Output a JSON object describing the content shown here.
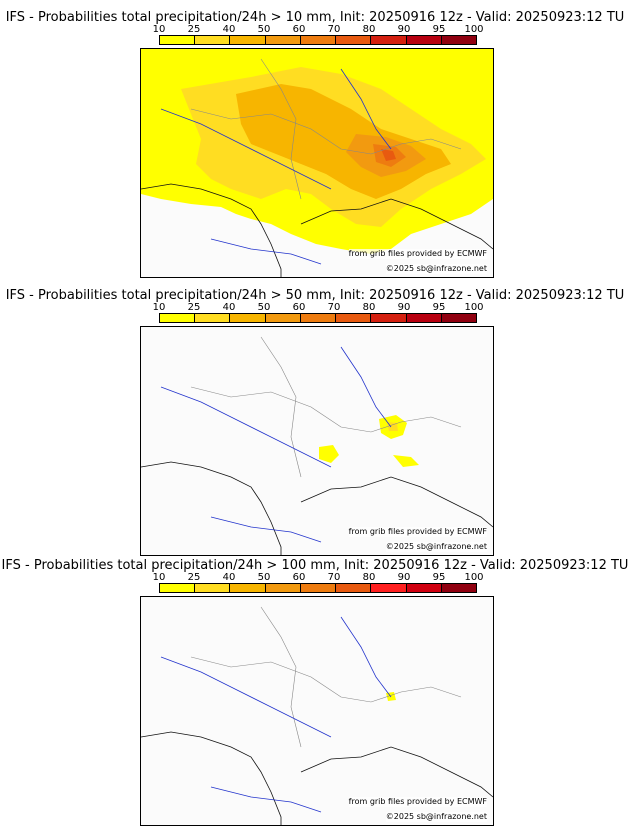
{
  "panels": [
    {
      "title": "IFS - Probabilities total precipitation/24h > 10 mm, Init: 20250916 12z - Valid: 20250923:12 TU",
      "probability_pct": [
        10,
        25,
        40,
        50,
        60,
        70,
        80,
        90,
        95,
        100
      ],
      "colors": [
        "#ffff00",
        "#ffdd22",
        "#f7b500",
        "#f29a10",
        "#ee7c10",
        "#e85a10",
        "#d42010",
        "#b80010",
        "#900010",
        "#6a0000"
      ],
      "credit_line1": "from grib files provided by ECMWF",
      "credit_line2": "©2025 sb@infrazone.net"
    },
    {
      "title": "IFS - Probabilities total precipitation/24h > 50 mm, Init: 20250916 12z - Valid: 20250923:12 TU",
      "probability_pct": [
        10,
        25,
        40,
        50,
        60,
        70,
        80,
        90,
        95,
        100
      ],
      "colors": [
        "#ffff00",
        "#ffdd22",
        "#f7b500",
        "#f29a10",
        "#ee7c10",
        "#e85a10",
        "#d42010",
        "#b80010",
        "#900010",
        "#6a0000"
      ],
      "credit_line1": "from grib files provided by ECMWF",
      "credit_line2": "©2025 sb@infrazone.net"
    },
    {
      "title": "IFS - Probabilities total precipitation/24h > 100 mm, Init: 20250916 12z - Valid: 20250923:12 TU",
      "probability_pct": [
        10,
        25,
        40,
        50,
        60,
        70,
        80,
        90,
        95,
        100
      ],
      "colors": [
        "#ffff00",
        "#ffdd22",
        "#f7b500",
        "#f29a10",
        "#ee7c10",
        "#e85a10",
        "#ff2020",
        "#d00010",
        "#900010",
        "#6a0000"
      ],
      "credit_line1": "from grib files provided by ECMWF",
      "credit_line2": "©2025 sb@infrazone.net"
    }
  ]
}
